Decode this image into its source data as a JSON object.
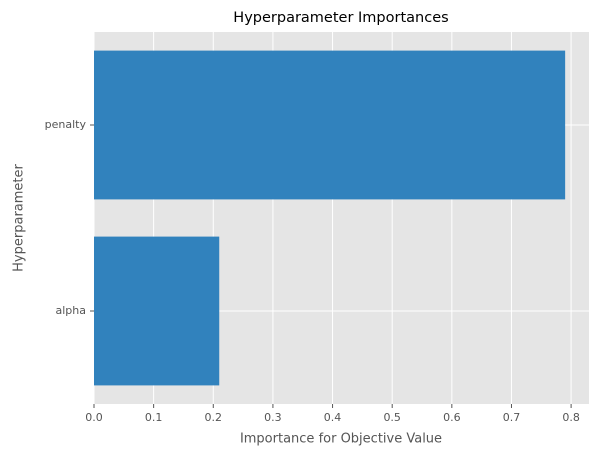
{
  "chart_data": {
    "type": "barh",
    "title": "Hyperparameter Importances",
    "xlabel": "Importance for Objective Value",
    "ylabel": "Hyperparameter",
    "categories": [
      "alpha",
      "penalty"
    ],
    "values": [
      0.21,
      0.79
    ],
    "color": "#3182bd",
    "xlim": [
      0,
      0.83
    ],
    "xticks": [
      {
        "value": 0,
        "label": "0.0"
      },
      0.1,
      0.2,
      0.3,
      0.4,
      0.5,
      0.6,
      0.7,
      0.8
    ],
    "grid": true
  }
}
